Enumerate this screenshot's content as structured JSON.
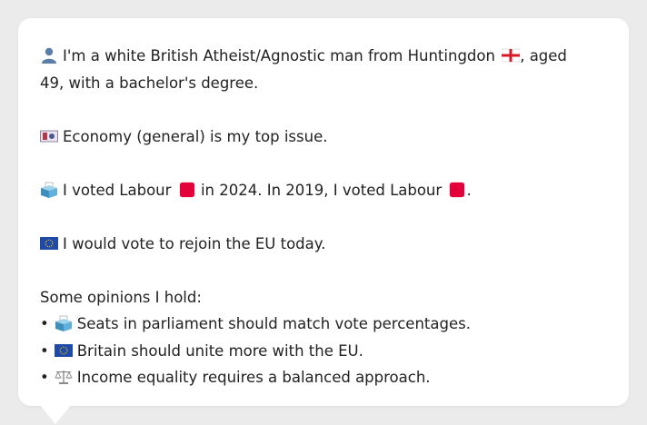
{
  "intro": {
    "text_before_flag": "I'm a white British Atheist/Agnostic man from Huntingdon",
    "text_after_flag": ", aged 49, with a bachelor's degree."
  },
  "issue": {
    "text": "Economy (general) is my top issue."
  },
  "vote": {
    "part1": "I voted Labour",
    "part2": "in 2024. In 2019, I voted Labour",
    "part3": "."
  },
  "eu": {
    "text": "I would vote to rejoin the EU today."
  },
  "opinions": {
    "heading": "Some opinions I hold:",
    "items": [
      {
        "icon": "ballot-box-icon",
        "text": "Seats in parliament should match vote percentages."
      },
      {
        "icon": "eu-flag-icon",
        "text": "Britain should unite more with the EU."
      },
      {
        "icon": "scales-icon",
        "text": "Income equality requires a balanced approach."
      }
    ]
  },
  "colors": {
    "labour_red": "#e4003b",
    "eu_blue": "#1f4aa8",
    "text": "#222222",
    "background": "#ebebeb"
  }
}
